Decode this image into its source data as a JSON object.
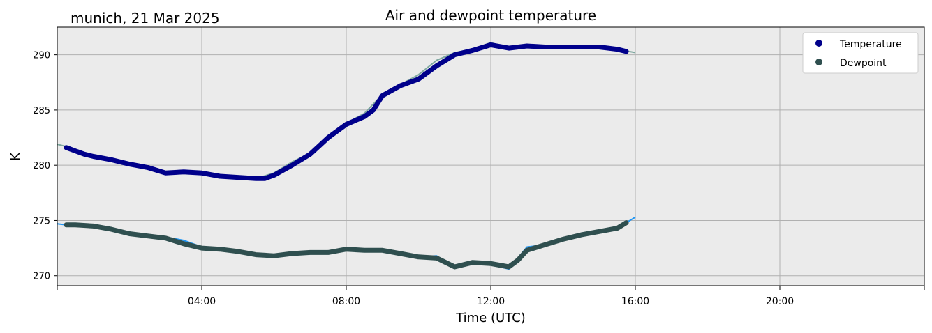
{
  "chart_data": {
    "type": "line",
    "title": "Air and dewpoint temperature",
    "subtitle": "munich, 21 Mar 2025",
    "xlabel": "Time (UTC)",
    "ylabel": "K",
    "xlim_hours": [
      0,
      24
    ],
    "ylim": [
      269.1,
      292.5
    ],
    "xticks": [
      {
        "hour": 4,
        "label": "04:00"
      },
      {
        "hour": 8,
        "label": "08:00"
      },
      {
        "hour": 12,
        "label": "12:00"
      },
      {
        "hour": 16,
        "label": "16:00"
      },
      {
        "hour": 20,
        "label": "20:00"
      }
    ],
    "yticks": [
      270,
      275,
      280,
      285,
      290
    ],
    "grid": true,
    "background_color": "#ebebeb",
    "legend_position": "top-right",
    "series": [
      {
        "name": "Temperature",
        "color": "#00008b",
        "raw_color": "#7fa8a0",
        "raw_x": [
          0.0,
          0.25,
          0.5,
          1,
          1.5,
          2,
          2.5,
          3,
          3.5,
          4,
          4.5,
          5,
          5.5,
          6,
          6.5,
          7,
          7.5,
          8,
          8.5,
          9,
          9.5,
          10,
          10.5,
          11,
          11.5,
          12,
          12.5,
          13,
          13.5,
          14,
          14.5,
          15,
          15.5,
          16
        ],
        "raw_y": [
          281.9,
          281.7,
          281.4,
          280.8,
          280.5,
          280.1,
          279.8,
          279.3,
          279.4,
          279.3,
          279.0,
          278.9,
          278.8,
          279.3,
          280.3,
          281.1,
          282.6,
          283.8,
          284.7,
          286.4,
          287.3,
          288.2,
          289.5,
          290.2,
          290.5,
          291.1,
          290.6,
          290.9,
          290.8,
          290.7,
          290.7,
          290.8,
          290.5,
          290.2
        ],
        "x": [
          0.25,
          0.5,
          0.75,
          1,
          1.5,
          2,
          2.5,
          3,
          3.5,
          4,
          4.5,
          5,
          5.5,
          5.75,
          6,
          6.5,
          7,
          7.5,
          8,
          8.5,
          8.75,
          9,
          9.5,
          10,
          10.5,
          11,
          11.5,
          12,
          12.5,
          13,
          13.5,
          14,
          14.5,
          15,
          15.5,
          15.75
        ],
        "values": [
          281.6,
          281.3,
          281.0,
          280.8,
          280.5,
          280.1,
          279.8,
          279.3,
          279.4,
          279.3,
          279.0,
          278.9,
          278.8,
          278.8,
          279.1,
          280.0,
          281.0,
          282.5,
          283.7,
          284.4,
          285.0,
          286.3,
          287.2,
          287.8,
          289.0,
          290.0,
          290.4,
          290.9,
          290.6,
          290.8,
          290.7,
          290.7,
          290.7,
          290.7,
          290.5,
          290.3
        ]
      },
      {
        "name": "Dewpoint",
        "color": "#2f4f4f",
        "raw_color": "#2196f3",
        "raw_x": [
          0.0,
          0.25,
          0.5,
          1,
          1.5,
          2,
          2.5,
          3,
          3.5,
          4,
          4.5,
          5,
          5.5,
          6,
          6.5,
          7,
          7.5,
          8,
          8.5,
          9,
          9.5,
          10,
          10.5,
          11,
          11.5,
          12,
          12.5,
          13,
          13.5,
          14,
          14.5,
          15,
          15.5,
          16
        ],
        "raw_y": [
          274.7,
          274.6,
          274.6,
          274.4,
          274.1,
          273.8,
          273.7,
          273.5,
          273.2,
          272.6,
          272.4,
          272.3,
          271.9,
          271.8,
          272.0,
          272.1,
          272.0,
          272.4,
          272.3,
          272.3,
          272.0,
          271.7,
          271.8,
          270.7,
          271.2,
          271.0,
          270.6,
          272.6,
          272.8,
          273.3,
          273.6,
          274.0,
          274.3,
          275.3
        ],
        "x": [
          0.25,
          0.5,
          1,
          1.5,
          2,
          2.5,
          3,
          3.5,
          4,
          4.5,
          5,
          5.5,
          6,
          6.5,
          7,
          7.5,
          8,
          8.5,
          9,
          9.5,
          10,
          10.5,
          11,
          11.5,
          12,
          12.5,
          12.75,
          13,
          13.5,
          14,
          14.5,
          15,
          15.5,
          15.75
        ],
        "values": [
          274.6,
          274.6,
          274.5,
          274.2,
          273.8,
          273.6,
          273.4,
          272.9,
          272.5,
          272.4,
          272.2,
          271.9,
          271.8,
          272.0,
          272.1,
          272.1,
          272.4,
          272.3,
          272.3,
          272.0,
          271.7,
          271.6,
          270.8,
          271.2,
          271.1,
          270.8,
          271.4,
          272.3,
          272.8,
          273.3,
          273.7,
          274.0,
          274.3,
          274.8
        ]
      }
    ]
  }
}
